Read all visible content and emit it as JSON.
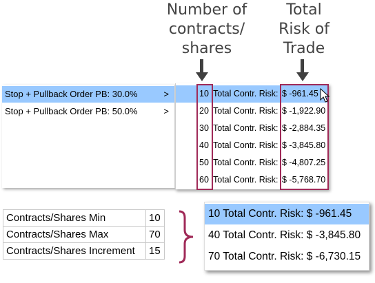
{
  "callouts": {
    "contracts": "Number of\ncontracts/\nshares",
    "risk": "Total\nRisk of\nTrade"
  },
  "menu": {
    "items": [
      {
        "label": "Stop + Pullback Order PB: 30.0%",
        "chevron": ">",
        "selected": true
      },
      {
        "label": "Stop + Pullback Order PB: 50.0%",
        "chevron": ">",
        "selected": false
      }
    ]
  },
  "submenu": {
    "items": [
      {
        "count": "10",
        "label": "Total Contr. Risk:",
        "value": "$ -961.45",
        "selected": true
      },
      {
        "count": "20",
        "label": "Total Contr. Risk:",
        "value": "$ -1,922.90",
        "selected": false
      },
      {
        "count": "30",
        "label": "Total Contr. Risk:",
        "value": "$ -2,884.35",
        "selected": false
      },
      {
        "count": "40",
        "label": "Total Contr. Risk:",
        "value": "$ -3,845.80",
        "selected": false
      },
      {
        "count": "50",
        "label": "Total Contr. Risk:",
        "value": "$ -4,807.25",
        "selected": false
      },
      {
        "count": "60",
        "label": "Total Contr. Risk:",
        "value": "$ -5,768.70",
        "selected": false
      }
    ]
  },
  "settings": {
    "rows": [
      {
        "key": "Contracts/Shares Min",
        "value": "10"
      },
      {
        "key": "Contracts/Shares Max",
        "value": "70"
      },
      {
        "key": "Contracts/Shares Increment",
        "value": "15"
      }
    ]
  },
  "result": {
    "items": [
      {
        "text": "10 Total Contr. Risk: $ -961.45",
        "selected": true
      },
      {
        "text": "40 Total Contr. Risk: $ -3,845.80",
        "selected": false
      },
      {
        "text": "70 Total Contr. Risk: $ -6,730.15",
        "selected": false
      }
    ]
  },
  "colors": {
    "highlight": "#99c9ff",
    "callout_box": "#a02a58",
    "callout_text": "#444444"
  }
}
